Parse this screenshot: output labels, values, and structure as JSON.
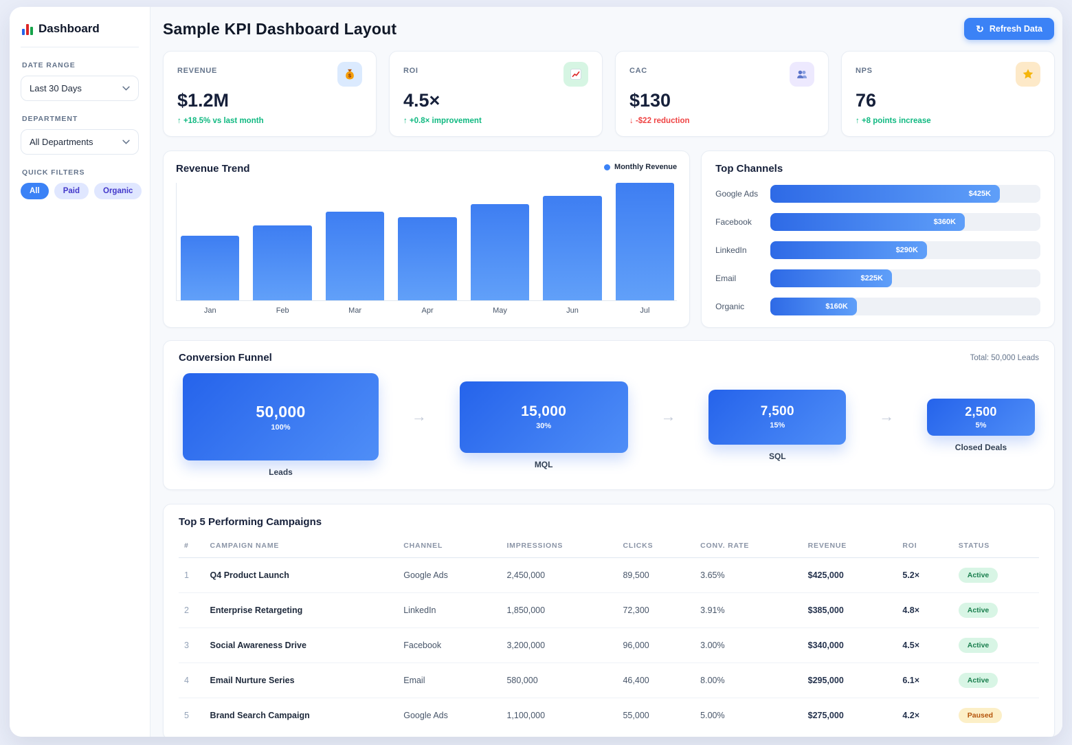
{
  "sidebar": {
    "logo": {
      "label": "Dashboard"
    },
    "date_range": {
      "label": "DATE RANGE",
      "value": "Last 30 Days"
    },
    "department": {
      "label": "DEPARTMENT",
      "value": "All Departments"
    },
    "quick_filters": {
      "label": "QUICK FILTERS",
      "options": [
        {
          "label": "All",
          "active": true
        },
        {
          "label": "Paid",
          "active": false
        },
        {
          "label": "Organic",
          "active": false
        }
      ]
    }
  },
  "header": {
    "title": "Sample KPI Dashboard Layout",
    "refresh_button": {
      "icon": "refresh-icon",
      "glyph": "↻",
      "label": "Refresh Data"
    }
  },
  "kpis": [
    {
      "label": "REVENUE",
      "value": "$1.2M",
      "delta": "↑ +18.5% vs last month",
      "trend": "positive",
      "icon": "money-bag-icon",
      "icon_bg": "#dbeafe"
    },
    {
      "label": "ROI",
      "value": "4.5×",
      "delta": "↑ +0.8× improvement",
      "trend": "positive",
      "icon": "chart-increasing-icon",
      "icon_bg": "#d6f5e3"
    },
    {
      "label": "CAC",
      "value": "$130",
      "delta": "↓ -$22 reduction",
      "trend": "negative",
      "icon": "people-icon",
      "icon_bg": "#ede9fe"
    },
    {
      "label": "NPS",
      "value": "76",
      "delta": "↑ +8 points increase",
      "trend": "positive",
      "icon": "star-icon",
      "icon_bg": "#fde9c8"
    }
  ],
  "chart_data": {
    "revenue_trend": {
      "type": "bar",
      "title": "Revenue Trend",
      "legend": "Monthly Revenue",
      "legend_color": "#3b82f6",
      "categories": [
        "Jan",
        "Feb",
        "Mar",
        "Apr",
        "May",
        "Jun",
        "Jul"
      ],
      "values_est_usd_k": [
        115,
        134,
        158,
        148,
        172,
        187,
        210
      ],
      "grid": false,
      "legend_position": "top-right"
    },
    "top_channels": {
      "type": "bar-horizontal",
      "title": "Top Channels",
      "categories": [
        "Google Ads",
        "Facebook",
        "LinkedIn",
        "Email",
        "Organic"
      ],
      "values_usd_k": [
        425,
        360,
        290,
        225,
        160
      ],
      "value_labels": [
        "$425K",
        "$360K",
        "$290K",
        "$225K",
        "$160K"
      ],
      "scale_max_usd_k": 500
    },
    "funnel": {
      "type": "funnel",
      "title": "Conversion Funnel",
      "total_label": "Total: 50,000 Leads",
      "stages": [
        {
          "value": "50,000",
          "pct": "100%",
          "label": "Leads"
        },
        {
          "value": "15,000",
          "pct": "30%",
          "label": "MQL"
        },
        {
          "value": "7,500",
          "pct": "15%",
          "label": "SQL"
        },
        {
          "value": "2,500",
          "pct": "5%",
          "label": "Closed Deals"
        }
      ]
    }
  },
  "table": {
    "title": "Top 5 Performing Campaigns",
    "columns": [
      "#",
      "CAMPAIGN NAME",
      "CHANNEL",
      "IMPRESSIONS",
      "CLICKS",
      "CONV. RATE",
      "REVENUE",
      "ROI",
      "STATUS"
    ],
    "rows": [
      {
        "rank": "1",
        "name": "Q4 Product Launch",
        "channel": "Google Ads",
        "impressions": "2,450,000",
        "clicks": "89,500",
        "conv_rate": "3.65%",
        "revenue": "$425,000",
        "roi": "5.2×",
        "status": "Active"
      },
      {
        "rank": "2",
        "name": "Enterprise Retargeting",
        "channel": "LinkedIn",
        "impressions": "1,850,000",
        "clicks": "72,300",
        "conv_rate": "3.91%",
        "revenue": "$385,000",
        "roi": "4.8×",
        "status": "Active"
      },
      {
        "rank": "3",
        "name": "Social Awareness Drive",
        "channel": "Facebook",
        "impressions": "3,200,000",
        "clicks": "96,000",
        "conv_rate": "3.00%",
        "revenue": "$340,000",
        "roi": "4.5×",
        "status": "Active"
      },
      {
        "rank": "4",
        "name": "Email Nurture Series",
        "channel": "Email",
        "impressions": "580,000",
        "clicks": "46,400",
        "conv_rate": "8.00%",
        "revenue": "$295,000",
        "roi": "6.1×",
        "status": "Active"
      },
      {
        "rank": "5",
        "name": "Brand Search Campaign",
        "channel": "Google Ads",
        "impressions": "1,100,000",
        "clicks": "55,000",
        "conv_rate": "5.00%",
        "revenue": "$275,000",
        "roi": "4.2×",
        "status": "Paused"
      }
    ]
  },
  "colors": {
    "accent": "#3b82f6",
    "positive": "#10b981",
    "negative": "#ef4444",
    "active_badge_bg": "#d8f5e5",
    "paused_badge_bg": "#fcefc7"
  }
}
